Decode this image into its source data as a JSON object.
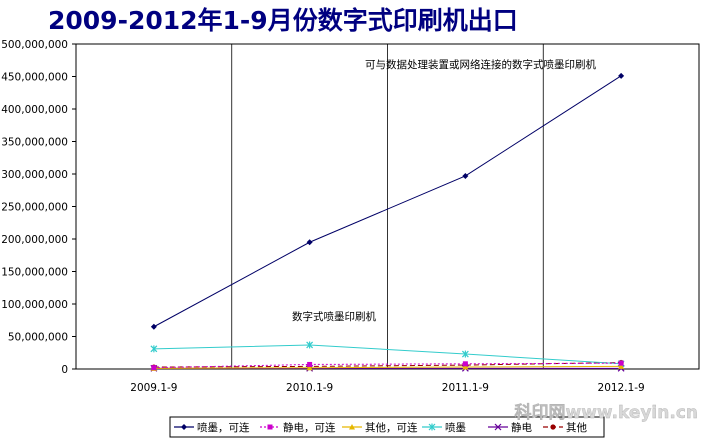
{
  "chart_data": {
    "type": "line",
    "title": "2009-2012年1-9月份数字式印刷机出口",
    "categories": [
      "2009.1-9",
      "2010.1-9",
      "2011.1-9",
      "2012.1-9"
    ],
    "ylim": [
      0,
      500000000
    ],
    "yticks": [
      0,
      50000000,
      100000000,
      150000000,
      200000000,
      250000000,
      300000000,
      350000000,
      400000000,
      450000000,
      500000000
    ],
    "ytick_labels": [
      "0",
      "50,000,000",
      "100,000,000",
      "150,000,000",
      "200,000,000",
      "250,000,000",
      "300,000,000",
      "350,000,000",
      "400,000,000",
      "450,000,000",
      "500,000,000"
    ],
    "grid": "vertical",
    "legend_position": "bottom",
    "series": [
      {
        "name": "喷墨，可连",
        "values": [
          65000000,
          195000000,
          297000000,
          451000000
        ],
        "color": "#000066",
        "dash": "",
        "marker": "diamond"
      },
      {
        "name": "静电，可连",
        "values": [
          2000000,
          7000000,
          8000000,
          9000000
        ],
        "color": "#cc00cc",
        "dash": "2,2",
        "marker": "square"
      },
      {
        "name": "其他，可连",
        "values": [
          1000000,
          2000000,
          3000000,
          4000000
        ],
        "color": "#e6b800",
        "dash": "",
        "marker": "triangle"
      },
      {
        "name": "喷墨",
        "values": [
          31000000,
          37000000,
          23000000,
          8000000
        ],
        "color": "#33cccc",
        "dash": "",
        "marker": "star"
      },
      {
        "name": "静电",
        "values": [
          1000000,
          1000000,
          1000000,
          1000000
        ],
        "color": "#660099",
        "dash": "",
        "marker": "x"
      },
      {
        "name": "其他",
        "values": [
          3000000,
          4000000,
          6000000,
          10000000
        ],
        "color": "#990000",
        "dash": "5,3",
        "marker": "circle"
      }
    ],
    "annotations": [
      {
        "text": "可与数据处理装置或网络连接的数字式喷墨印刷机"
      },
      {
        "text": "数字式喷墨印刷机"
      }
    ]
  },
  "watermark": "科印网www.keyin.cn"
}
